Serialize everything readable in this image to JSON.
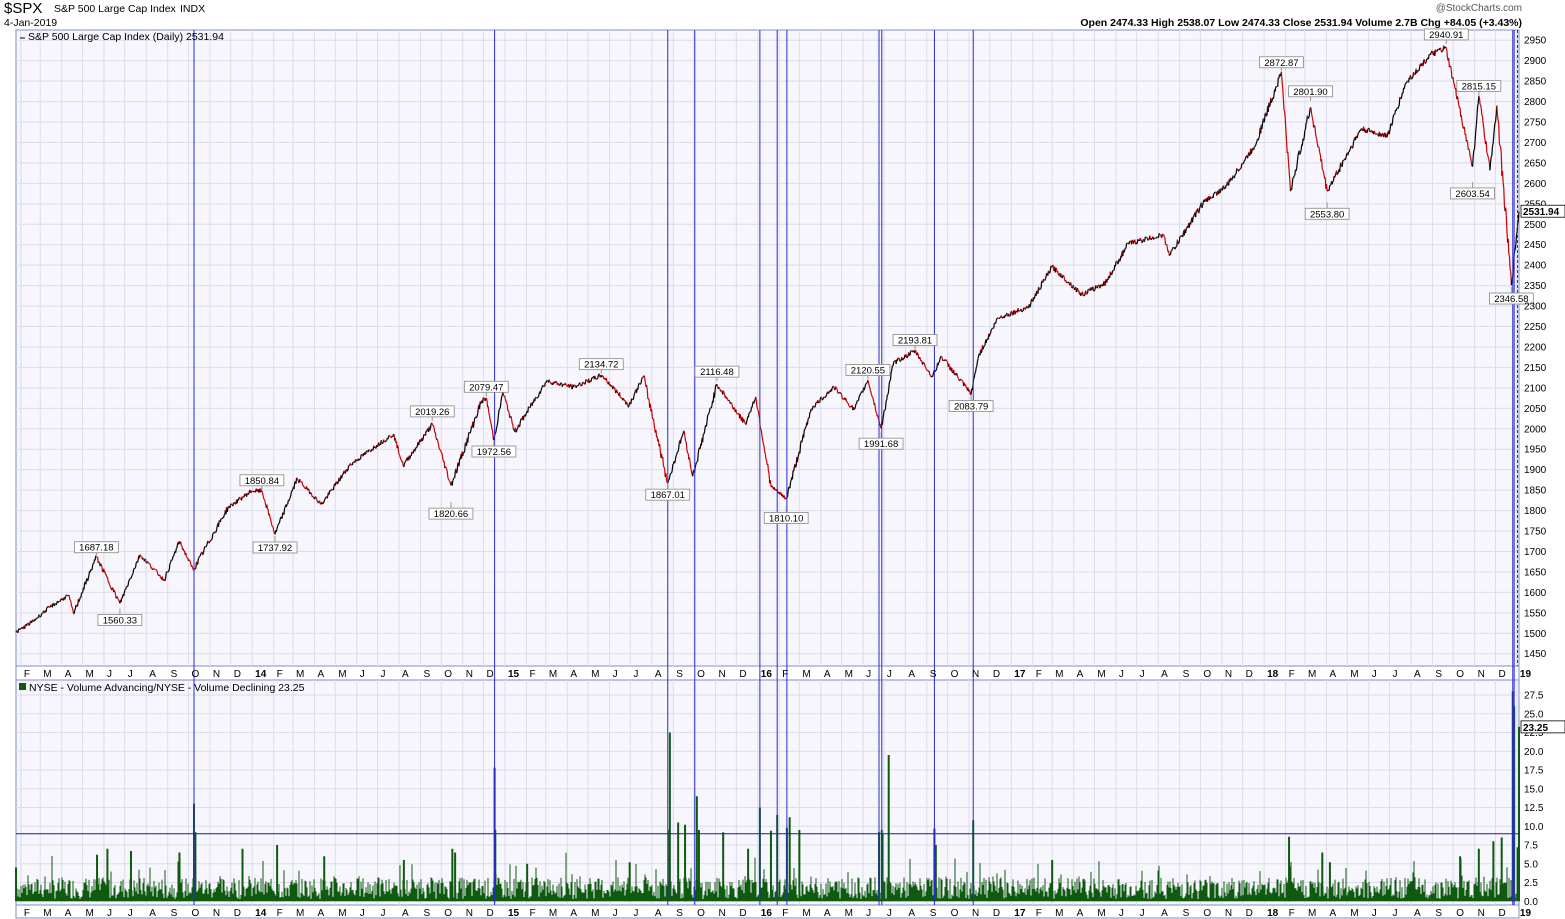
{
  "header": {
    "symbol": "$SPX",
    "name": "S&P 500 Large Cap Index",
    "exchange": "INDX",
    "date": "4-Jan-2019",
    "ohlc": "Open 2474.33  High 2538.07  Low 2474.33  Close 2531.94  Volume 2.7B  Chg +84.05 (+3.43%)",
    "watermark": "@StockCharts.com"
  },
  "colors": {
    "panel_bg": "#f6f6fc",
    "frame": "#7e8ec3",
    "grid": "#dcdcec",
    "vline": "#2a2ad4",
    "price_up": "#000000",
    "price_down": "#cc0000",
    "volume": "#0e5a0e",
    "label_box": "#ffffff"
  },
  "chart_data": [
    {
      "type": "line",
      "legend": "S&P 500 Large Cap Index (Daily) 2531.94",
      "last_value_label": "2531.94",
      "y_ticks": [
        1450,
        1500,
        1550,
        1600,
        1650,
        1700,
        1750,
        1800,
        1850,
        1900,
        1950,
        2000,
        2050,
        2100,
        2150,
        2200,
        2250,
        2300,
        2350,
        2400,
        2450,
        2500,
        2550,
        2600,
        2650,
        2700,
        2750,
        2800,
        2850,
        2900,
        2950
      ],
      "ylim": [
        1420,
        2975
      ],
      "x_range": [
        "2013-01-25",
        "2019-01-04"
      ],
      "x_tick_labels": [
        {
          "label": "F",
          "date": "2013-02-01"
        },
        {
          "label": "M",
          "date": "2013-03-01"
        },
        {
          "label": "A",
          "date": "2013-04-01"
        },
        {
          "label": "M",
          "date": "2013-05-01"
        },
        {
          "label": "J",
          "date": "2013-06-01"
        },
        {
          "label": "J",
          "date": "2013-07-01"
        },
        {
          "label": "A",
          "date": "2013-08-01"
        },
        {
          "label": "S",
          "date": "2013-09-01"
        },
        {
          "label": "O",
          "date": "2013-10-01"
        },
        {
          "label": "N",
          "date": "2013-11-01"
        },
        {
          "label": "D",
          "date": "2013-12-01"
        },
        {
          "label": "14",
          "date": "2014-01-01",
          "bold": true
        },
        {
          "label": "F",
          "date": "2014-02-01"
        },
        {
          "label": "M",
          "date": "2014-03-01"
        },
        {
          "label": "A",
          "date": "2014-04-01"
        },
        {
          "label": "M",
          "date": "2014-05-01"
        },
        {
          "label": "J",
          "date": "2014-06-01"
        },
        {
          "label": "J",
          "date": "2014-07-01"
        },
        {
          "label": "A",
          "date": "2014-08-01"
        },
        {
          "label": "S",
          "date": "2014-09-01"
        },
        {
          "label": "O",
          "date": "2014-10-01"
        },
        {
          "label": "N",
          "date": "2014-11-01"
        },
        {
          "label": "D",
          "date": "2014-12-01"
        },
        {
          "label": "15",
          "date": "2015-01-01",
          "bold": true
        },
        {
          "label": "F",
          "date": "2015-02-01"
        },
        {
          "label": "M",
          "date": "2015-03-01"
        },
        {
          "label": "A",
          "date": "2015-04-01"
        },
        {
          "label": "M",
          "date": "2015-05-01"
        },
        {
          "label": "J",
          "date": "2015-06-01"
        },
        {
          "label": "J",
          "date": "2015-07-01"
        },
        {
          "label": "A",
          "date": "2015-08-01"
        },
        {
          "label": "S",
          "date": "2015-09-01"
        },
        {
          "label": "O",
          "date": "2015-10-01"
        },
        {
          "label": "N",
          "date": "2015-11-01"
        },
        {
          "label": "D",
          "date": "2015-12-01"
        },
        {
          "label": "16",
          "date": "2016-01-01",
          "bold": true
        },
        {
          "label": "F",
          "date": "2016-02-01"
        },
        {
          "label": "M",
          "date": "2016-03-01"
        },
        {
          "label": "A",
          "date": "2016-04-01"
        },
        {
          "label": "M",
          "date": "2016-05-01"
        },
        {
          "label": "J",
          "date": "2016-06-01"
        },
        {
          "label": "J",
          "date": "2016-07-01"
        },
        {
          "label": "A",
          "date": "2016-08-01"
        },
        {
          "label": "S",
          "date": "2016-09-01"
        },
        {
          "label": "O",
          "date": "2016-10-01"
        },
        {
          "label": "N",
          "date": "2016-11-01"
        },
        {
          "label": "D",
          "date": "2016-12-01"
        },
        {
          "label": "17",
          "date": "2017-01-01",
          "bold": true
        },
        {
          "label": "F",
          "date": "2017-02-01"
        },
        {
          "label": "M",
          "date": "2017-03-01"
        },
        {
          "label": "A",
          "date": "2017-04-01"
        },
        {
          "label": "M",
          "date": "2017-05-01"
        },
        {
          "label": "J",
          "date": "2017-06-01"
        },
        {
          "label": "J",
          "date": "2017-07-01"
        },
        {
          "label": "A",
          "date": "2017-08-01"
        },
        {
          "label": "S",
          "date": "2017-09-01"
        },
        {
          "label": "O",
          "date": "2017-10-01"
        },
        {
          "label": "N",
          "date": "2017-11-01"
        },
        {
          "label": "D",
          "date": "2017-12-01"
        },
        {
          "label": "18",
          "date": "2018-01-01",
          "bold": true
        },
        {
          "label": "F",
          "date": "2018-02-01"
        },
        {
          "label": "M",
          "date": "2018-03-01"
        },
        {
          "label": "A",
          "date": "2018-04-01"
        },
        {
          "label": "M",
          "date": "2018-05-01"
        },
        {
          "label": "J",
          "date": "2018-06-01"
        },
        {
          "label": "J",
          "date": "2018-07-01"
        },
        {
          "label": "A",
          "date": "2018-08-01"
        },
        {
          "label": "S",
          "date": "2018-09-01"
        },
        {
          "label": "O",
          "date": "2018-10-01"
        },
        {
          "label": "N",
          "date": "2018-11-01"
        },
        {
          "label": "D",
          "date": "2018-12-01"
        },
        {
          "label": "19",
          "date": "2019-01-01",
          "bold": true
        }
      ],
      "x": [
        "2013-01-25",
        "2013-02-19",
        "2013-03-14",
        "2013-04-11",
        "2013-04-18",
        "2013-05-21",
        "2013-06-24",
        "2013-07-23",
        "2013-08-27",
        "2013-09-18",
        "2013-10-08",
        "2013-11-27",
        "2013-12-31",
        "2014-01-15",
        "2014-02-03",
        "2014-03-07",
        "2014-04-11",
        "2014-05-22",
        "2014-06-30",
        "2014-07-24",
        "2014-08-07",
        "2014-09-18",
        "2014-10-15",
        "2014-11-28",
        "2014-12-05",
        "2014-12-16",
        "2014-12-29",
        "2015-01-15",
        "2015-03-02",
        "2015-04-10",
        "2015-05-21",
        "2015-06-29",
        "2015-07-20",
        "2015-08-24",
        "2015-09-16",
        "2015-09-29",
        "2015-11-03",
        "2015-12-14",
        "2015-12-29",
        "2016-01-20",
        "2016-02-11",
        "2016-03-18",
        "2016-04-20",
        "2016-05-19",
        "2016-06-08",
        "2016-06-27",
        "2016-07-15",
        "2016-08-15",
        "2016-09-09",
        "2016-09-22",
        "2016-11-04",
        "2016-11-15",
        "2016-12-13",
        "2017-01-26",
        "2017-03-01",
        "2017-04-13",
        "2017-05-17",
        "2017-06-19",
        "2017-08-08",
        "2017-08-18",
        "2017-10-05",
        "2017-11-08",
        "2017-12-18",
        "2018-01-26",
        "2018-02-08",
        "2018-03-09",
        "2018-04-02",
        "2018-05-21",
        "2018-06-28",
        "2018-07-25",
        "2018-08-29",
        "2018-09-20",
        "2018-10-10",
        "2018-10-29",
        "2018-11-07",
        "2018-11-23",
        "2018-12-03",
        "2018-12-24",
        "2019-01-04"
      ],
      "y": [
        1502,
        1530,
        1563,
        1593,
        1548,
        1687,
        1573,
        1692,
        1630,
        1725,
        1655,
        1807,
        1848,
        1848,
        1742,
        1878,
        1815,
        1911,
        1960,
        1987,
        1910,
        2011,
        1862,
        2067,
        2075,
        1972,
        2090,
        1993,
        2117,
        2102,
        2131,
        2057,
        2128,
        1867,
        1995,
        1884,
        2109,
        2012,
        2078,
        1859,
        1829,
        2049,
        2102,
        2047,
        2119,
        2001,
        2161,
        2190,
        2127,
        2177,
        2085,
        2180,
        2271,
        2298,
        2396,
        2328,
        2357,
        2453,
        2474,
        2425,
        2553,
        2594,
        2690,
        2872,
        2581,
        2786,
        2581,
        2733,
        2716,
        2846,
        2914,
        2931,
        2785,
        2641,
        2814,
        2632,
        2790,
        2351,
        2531
      ],
      "annotations": [
        {
          "label": "1687.18",
          "date": "2013-05-21",
          "value": 1687.18,
          "pos": "above"
        },
        {
          "label": "1560.33",
          "date": "2013-06-24",
          "value": 1560.33,
          "pos": "below"
        },
        {
          "label": "1850.84",
          "date": "2014-01-15",
          "value": 1850.84,
          "pos": "above"
        },
        {
          "label": "1737.92",
          "date": "2014-02-03",
          "value": 1737.92,
          "pos": "below"
        },
        {
          "label": "2019.26",
          "date": "2014-09-18",
          "value": 2019.26,
          "pos": "above"
        },
        {
          "label": "1820.66",
          "date": "2014-10-15",
          "value": 1820.66,
          "pos": "below"
        },
        {
          "label": "2079.47",
          "date": "2014-12-05",
          "value": 2079.47,
          "pos": "above"
        },
        {
          "label": "1972.56",
          "date": "2014-12-16",
          "value": 1972.56,
          "pos": "below"
        },
        {
          "label": "2134.72",
          "date": "2015-05-20",
          "value": 2134.72,
          "pos": "above"
        },
        {
          "label": "1867.01",
          "date": "2015-08-24",
          "value": 1867.01,
          "pos": "below"
        },
        {
          "label": "2116.48",
          "date": "2015-11-03",
          "value": 2116.48,
          "pos": "above"
        },
        {
          "label": "1810.10",
          "date": "2016-02-11",
          "value": 1810.1,
          "pos": "below"
        },
        {
          "label": "2120.55",
          "date": "2016-06-08",
          "value": 2120.55,
          "pos": "above"
        },
        {
          "label": "1991.68",
          "date": "2016-06-27",
          "value": 1991.68,
          "pos": "below"
        },
        {
          "label": "2193.81",
          "date": "2016-08-15",
          "value": 2193.81,
          "pos": "above"
        },
        {
          "label": "2083.79",
          "date": "2016-11-04",
          "value": 2083.79,
          "pos": "below"
        },
        {
          "label": "2872.87",
          "date": "2018-01-26",
          "value": 2872.87,
          "pos": "above"
        },
        {
          "label": "2801.90",
          "date": "2018-03-09",
          "value": 2801.9,
          "pos": "above"
        },
        {
          "label": "2553.80",
          "date": "2018-04-02",
          "value": 2553.8,
          "pos": "below"
        },
        {
          "label": "2940.91",
          "date": "2018-09-21",
          "value": 2940.91,
          "pos": "above"
        },
        {
          "label": "2815.15",
          "date": "2018-11-07",
          "value": 2815.15,
          "pos": "above"
        },
        {
          "label": "2603.54",
          "date": "2018-10-29",
          "value": 2603.54,
          "pos": "below"
        },
        {
          "label": "2346.58",
          "date": "2018-12-24",
          "value": 2346.58,
          "pos": "below"
        }
      ],
      "vertical_markers": [
        "2013-10-09",
        "2014-12-17",
        "2015-08-24",
        "2015-10-02",
        "2016-01-04",
        "2016-01-29",
        "2016-02-12",
        "2016-06-24",
        "2016-06-28",
        "2016-09-12",
        "2016-11-07",
        "2018-12-26",
        "2018-12-28"
      ]
    },
    {
      "type": "bar",
      "legend": "NYSE - Volume Advancing/NYSE - Volume Declining 23.25",
      "last_value_label": "23.25",
      "y_ticks": [
        0.0,
        2.5,
        5.0,
        7.5,
        10.0,
        12.5,
        15.0,
        17.5,
        20.0,
        22.5,
        25.0,
        27.5
      ],
      "y_tick_labels": [
        "0.0",
        "2.5",
        "5.0",
        "7.5",
        "10.0",
        "12.5",
        "15.0",
        "17.5",
        "20.0",
        "22.5",
        "25.0",
        "27.5"
      ],
      "ylim": [
        -0.5,
        29.5
      ],
      "reference_line": 9.0,
      "baseline_range": [
        0.3,
        3.2
      ],
      "spikes": [
        {
          "date": "2013-01-25",
          "value": 4.5
        },
        {
          "date": "2013-05-22",
          "value": 6.2
        },
        {
          "date": "2013-06-06",
          "value": 7.0
        },
        {
          "date": "2013-07-10",
          "value": 6.7
        },
        {
          "date": "2013-09-18",
          "value": 6.5
        },
        {
          "date": "2013-10-09",
          "value": 13.0
        },
        {
          "date": "2013-10-11",
          "value": 9.2
        },
        {
          "date": "2013-12-18",
          "value": 7.0
        },
        {
          "date": "2014-02-06",
          "value": 7.5
        },
        {
          "date": "2014-04-15",
          "value": 6.0
        },
        {
          "date": "2014-08-08",
          "value": 5.5
        },
        {
          "date": "2014-10-17",
          "value": 7.0
        },
        {
          "date": "2014-10-21",
          "value": 6.5
        },
        {
          "date": "2014-12-17",
          "value": 17.8
        },
        {
          "date": "2014-12-18",
          "value": 9.5
        },
        {
          "date": "2015-02-02",
          "value": 5.0
        },
        {
          "date": "2015-06-30",
          "value": 5.2
        },
        {
          "date": "2015-08-26",
          "value": 9.5
        },
        {
          "date": "2015-08-27",
          "value": 22.5
        },
        {
          "date": "2015-09-08",
          "value": 10.5
        },
        {
          "date": "2015-09-18",
          "value": 10.2
        },
        {
          "date": "2015-10-05",
          "value": 14.0
        },
        {
          "date": "2015-10-08",
          "value": 9.5
        },
        {
          "date": "2015-11-12",
          "value": 9.2
        },
        {
          "date": "2015-12-18",
          "value": 7.0
        },
        {
          "date": "2016-01-04",
          "value": 12.5
        },
        {
          "date": "2016-01-20",
          "value": 9.4
        },
        {
          "date": "2016-01-29",
          "value": 11.5
        },
        {
          "date": "2016-02-12",
          "value": 9.8
        },
        {
          "date": "2016-02-16",
          "value": 11.2
        },
        {
          "date": "2016-03-01",
          "value": 9.5
        },
        {
          "date": "2016-06-24",
          "value": 9.2
        },
        {
          "date": "2016-06-28",
          "value": 9.5
        },
        {
          "date": "2016-06-29",
          "value": 9.0
        },
        {
          "date": "2016-07-08",
          "value": 19.5
        },
        {
          "date": "2016-09-12",
          "value": 9.7
        },
        {
          "date": "2016-09-14",
          "value": 7.5
        },
        {
          "date": "2016-11-07",
          "value": 10.8
        },
        {
          "date": "2017-03-01",
          "value": 5.5
        },
        {
          "date": "2018-02-06",
          "value": 8.6
        },
        {
          "date": "2018-03-26",
          "value": 6.5
        },
        {
          "date": "2018-04-06",
          "value": 5.2
        },
        {
          "date": "2018-10-11",
          "value": 6.0
        },
        {
          "date": "2018-11-07",
          "value": 7.0
        },
        {
          "date": "2018-11-28",
          "value": 8.0
        },
        {
          "date": "2018-12-10",
          "value": 8.5
        },
        {
          "date": "2018-12-26",
          "value": 28.0
        },
        {
          "date": "2018-12-28",
          "value": 26.0
        },
        {
          "date": "2019-01-02",
          "value": 7.2
        },
        {
          "date": "2019-01-04",
          "value": 23.25
        }
      ]
    }
  ]
}
